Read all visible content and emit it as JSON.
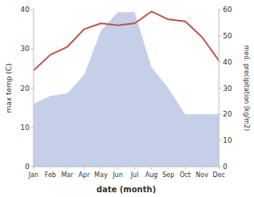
{
  "chart_data": {
    "type": "line",
    "xlabel": "date (month)",
    "ylabel": "max temp (C)",
    "y2label": "med. precipitation (kg/m2)",
    "categories": [
      "Jan",
      "Feb",
      "Mar",
      "Apr",
      "May",
      "Jun",
      "Jul",
      "Aug",
      "Sep",
      "Oct",
      "Nov",
      "Dec"
    ],
    "series": [
      {
        "type": "area",
        "axis": "y2",
        "color": "#c5d0e8",
        "values": [
          24.0,
          27.0,
          28.0,
          35.0,
          52.0,
          59.0,
          59.0,
          38.0,
          30.0,
          20.0,
          20.0,
          20.0
        ]
      },
      {
        "type": "line",
        "color": "#c0504d",
        "values": [
          24.5,
          28.5,
          30.5,
          35.0,
          36.5,
          36.0,
          36.5,
          39.5,
          37.5,
          37.0,
          33.0,
          27.0
        ]
      }
    ],
    "ylim": [
      0,
      40
    ],
    "yticks": [
      0,
      10,
      20,
      30,
      40
    ],
    "y2lim": [
      0,
      60
    ],
    "y2ticks": [
      0,
      10,
      20,
      30,
      40,
      50,
      60
    ],
    "grid": false
  }
}
